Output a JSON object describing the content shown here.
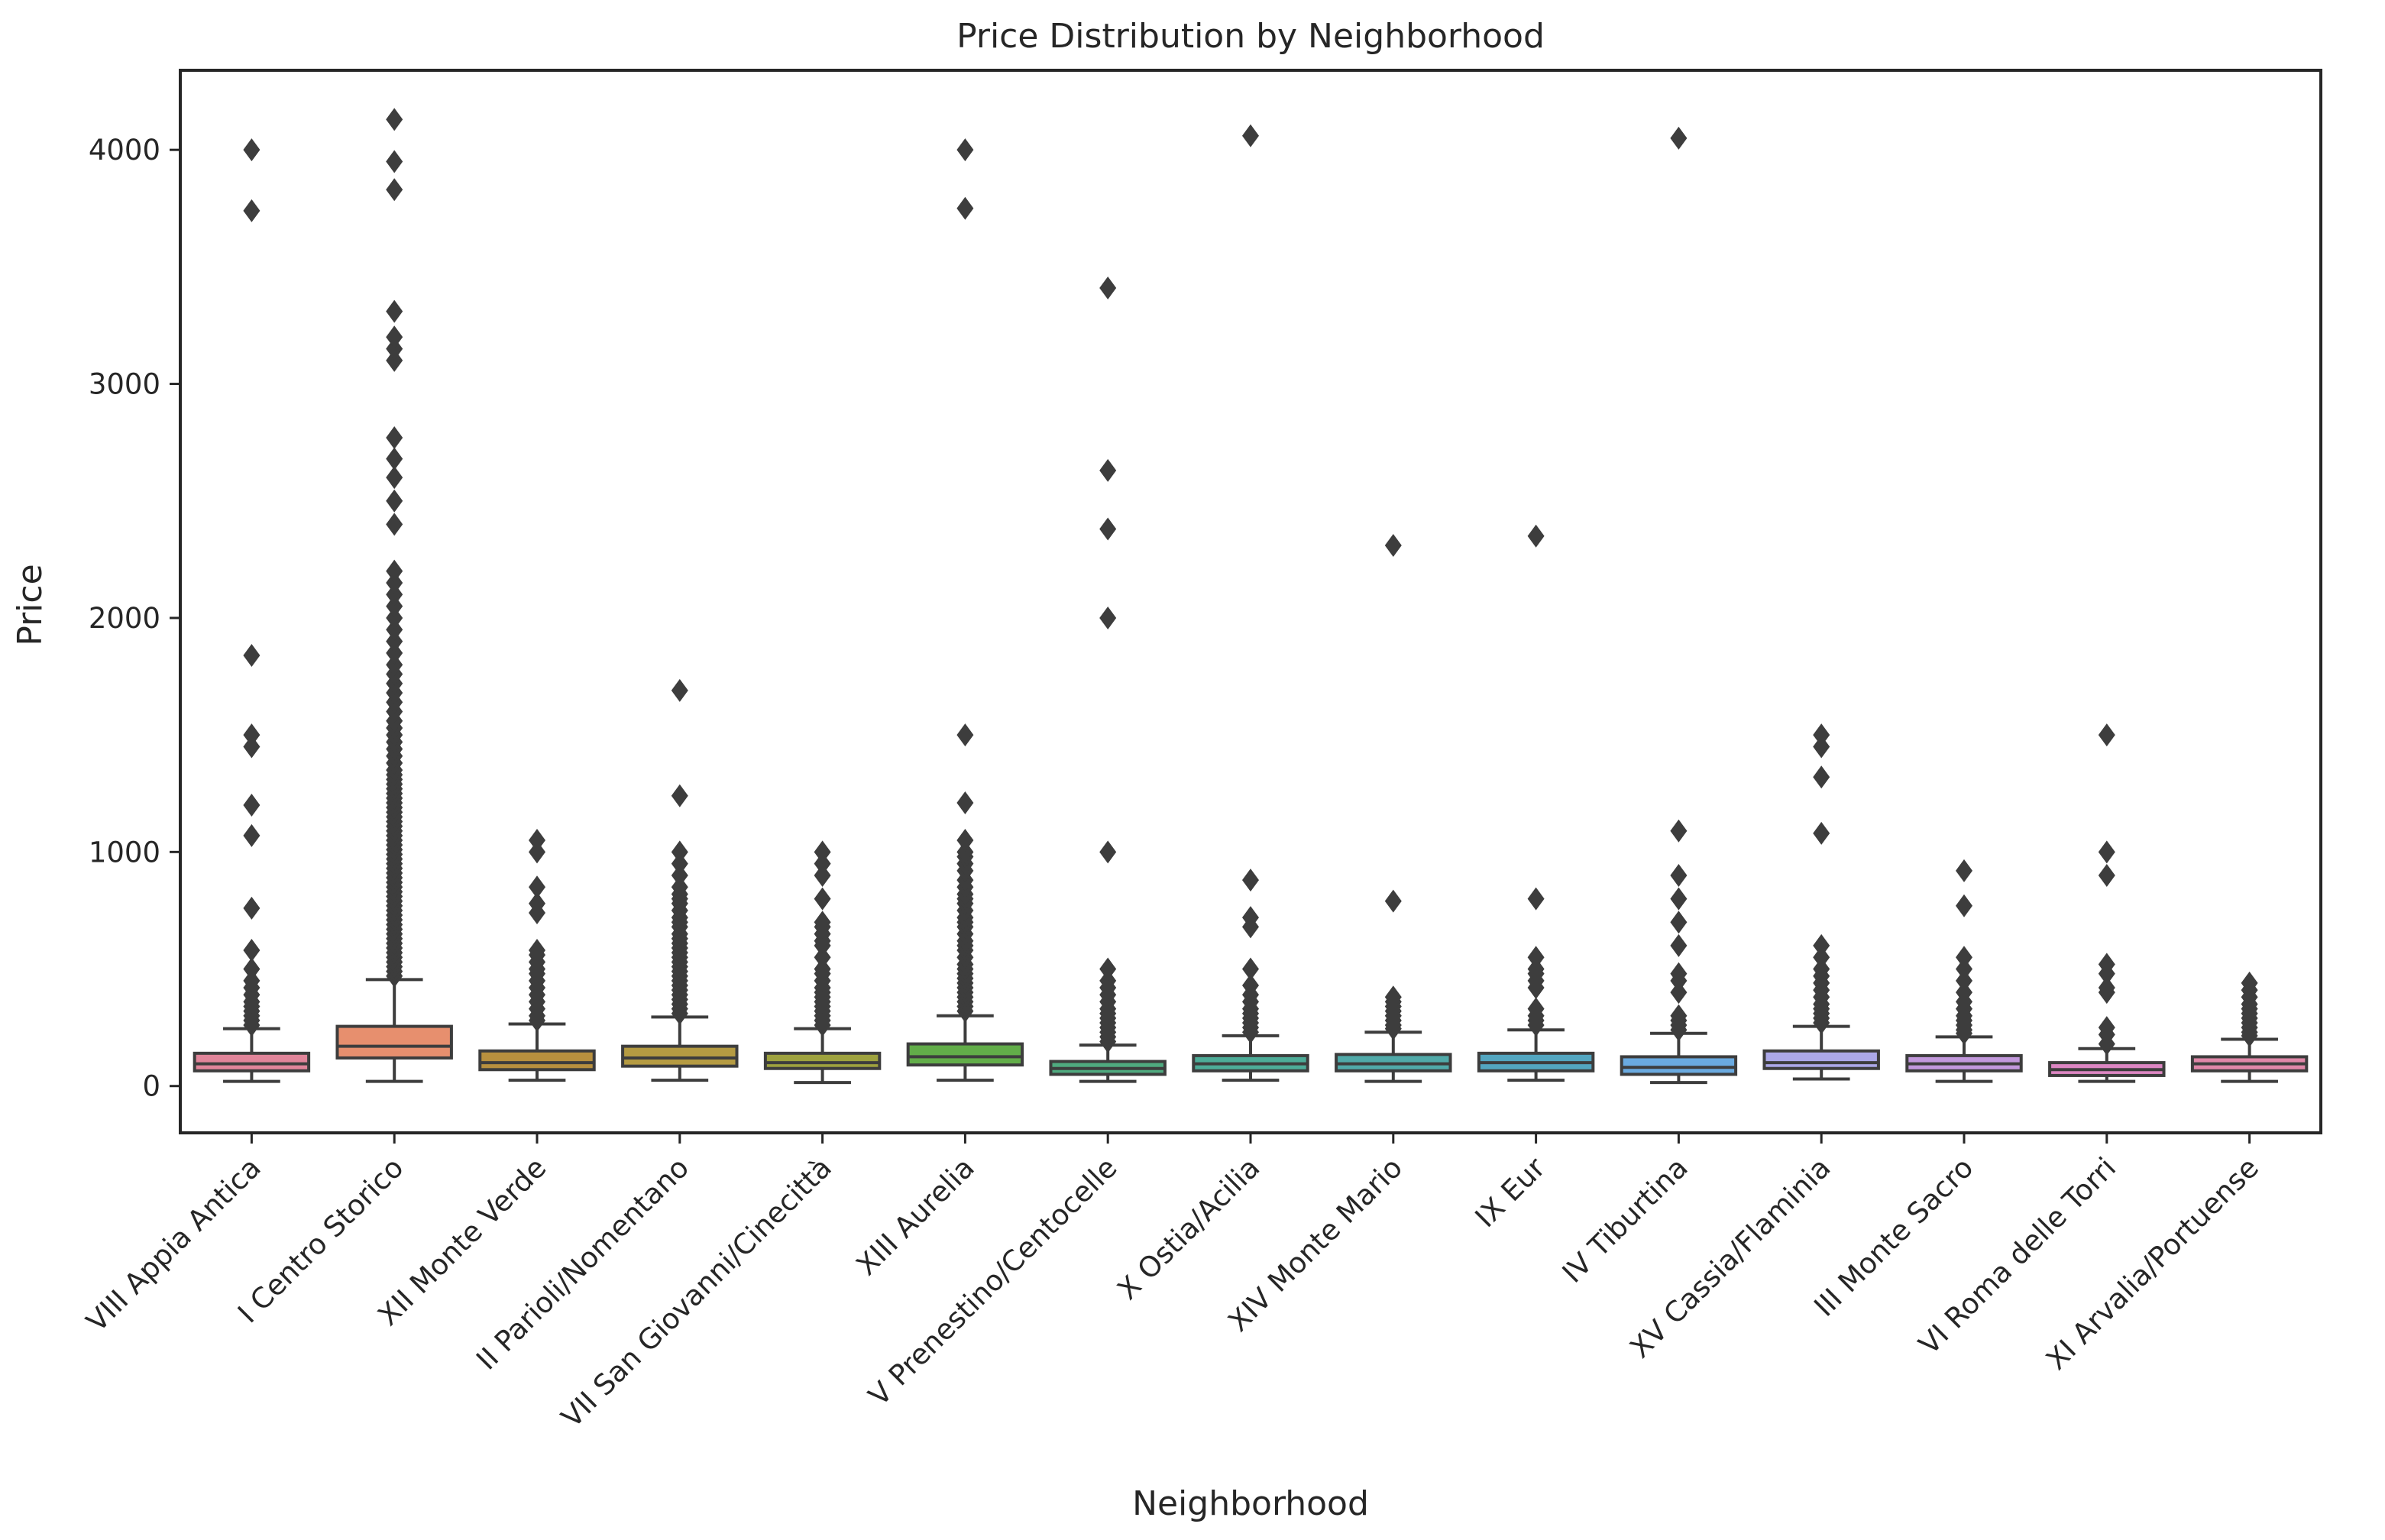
{
  "chart_data": {
    "type": "box",
    "title": "Price Distribution by Neighborhood",
    "xlabel": "Neighborhood",
    "ylabel": "Price",
    "ylim": [
      -200,
      4340
    ],
    "yticks": [
      0,
      1000,
      2000,
      3000,
      4000
    ],
    "grid": false,
    "legend": "none",
    "categories": [
      "VIII Appia Antica",
      "I Centro Storico",
      "XII Monte Verde",
      "II Parioli/Nomentano",
      "VII San Giovanni/Cinecittà",
      "XIII Aurelia",
      "V Prenestino/Centocelle",
      "X Ostia/Acilia",
      "XIV Monte Mario",
      "IX Eur",
      "IV Tiburtina",
      "XV Cassia/Flaminia",
      "III Monte Sacro",
      "VI Roma delle Torri",
      "XI Arvalia/Portuense"
    ],
    "colors": [
      "#e1859a",
      "#e78f6e",
      "#b8903e",
      "#b59b42",
      "#9ea23e",
      "#62ad49",
      "#4faa7f",
      "#4dac98",
      "#50aaa9",
      "#53a6c0",
      "#6aaae0",
      "#aca8e8",
      "#c298dc",
      "#dc86c2",
      "#e087a8"
    ],
    "boxes": [
      {
        "whisker_low": 20,
        "q1": 65,
        "median": 95,
        "q3": 140,
        "whisker_high": 245,
        "outliers": [
          260,
          280,
          300,
          320,
          340,
          360,
          390,
          420,
          450,
          500,
          580,
          760,
          1070,
          1200,
          1450,
          1500,
          1840,
          3740,
          4000
        ]
      },
      {
        "whisker_low": 20,
        "q1": 120,
        "median": 170,
        "q3": 255,
        "whisker_high": 455,
        "outliers": [
          470,
          490,
          510,
          530,
          550,
          570,
          590,
          610,
          630,
          650,
          670,
          690,
          710,
          730,
          750,
          770,
          790,
          810,
          830,
          850,
          870,
          890,
          910,
          930,
          950,
          970,
          990,
          1010,
          1030,
          1050,
          1070,
          1090,
          1110,
          1130,
          1150,
          1170,
          1190,
          1210,
          1230,
          1250,
          1270,
          1290,
          1310,
          1330,
          1350,
          1380,
          1410,
          1440,
          1470,
          1500,
          1530,
          1560,
          1600,
          1640,
          1680,
          1720,
          1760,
          1800,
          1850,
          1900,
          1950,
          2000,
          2050,
          2100,
          2150,
          2200,
          2400,
          2500,
          2600,
          2680,
          2770,
          3100,
          3150,
          3200,
          3310,
          3830,
          3950,
          4130
        ]
      },
      {
        "whisker_low": 25,
        "q1": 70,
        "median": 100,
        "q3": 150,
        "whisker_high": 265,
        "outliers": [
          280,
          300,
          330,
          360,
          390,
          420,
          450,
          480,
          500,
          530,
          560,
          580,
          740,
          780,
          850,
          1000,
          1050
        ]
      },
      {
        "whisker_low": 25,
        "q1": 85,
        "median": 120,
        "q3": 170,
        "whisker_high": 295,
        "outliers": [
          310,
          330,
          350,
          370,
          390,
          410,
          430,
          450,
          470,
          490,
          510,
          530,
          550,
          570,
          590,
          610,
          630,
          650,
          680,
          700,
          720,
          750,
          780,
          800,
          820,
          850,
          900,
          950,
          1000,
          1240,
          1690
        ]
      },
      {
        "whisker_low": 15,
        "q1": 75,
        "median": 100,
        "q3": 140,
        "whisker_high": 245,
        "outliers": [
          260,
          280,
          300,
          320,
          340,
          360,
          380,
          400,
          420,
          450,
          480,
          500,
          550,
          600,
          620,
          650,
          680,
          700,
          800,
          900,
          950,
          1000
        ]
      },
      {
        "whisker_low": 25,
        "q1": 90,
        "median": 125,
        "q3": 180,
        "whisker_high": 300,
        "outliers": [
          320,
          340,
          360,
          380,
          400,
          420,
          440,
          460,
          480,
          500,
          520,
          550,
          580,
          600,
          620,
          650,
          680,
          700,
          720,
          750,
          780,
          800,
          820,
          850,
          880,
          920,
          950,
          980,
          1000,
          1050,
          1210,
          1500,
          3750,
          4000
        ]
      },
      {
        "whisker_low": 20,
        "q1": 50,
        "median": 75,
        "q3": 105,
        "whisker_high": 175,
        "outliers": [
          190,
          210,
          230,
          250,
          270,
          290,
          310,
          330,
          360,
          390,
          420,
          450,
          500,
          1000,
          2000,
          2380,
          2630,
          3410
        ]
      },
      {
        "whisker_low": 25,
        "q1": 65,
        "median": 95,
        "q3": 130,
        "whisker_high": 215,
        "outliers": [
          230,
          250,
          270,
          290,
          310,
          330,
          360,
          390,
          430,
          500,
          680,
          720,
          880,
          4060
        ]
      },
      {
        "whisker_low": 20,
        "q1": 65,
        "median": 95,
        "q3": 135,
        "whisker_high": 230,
        "outliers": [
          245,
          260,
          280,
          300,
          320,
          340,
          360,
          380,
          790,
          2310
        ]
      },
      {
        "whisker_low": 25,
        "q1": 65,
        "median": 100,
        "q3": 140,
        "whisker_high": 240,
        "outliers": [
          260,
          280,
          300,
          330,
          420,
          450,
          480,
          500,
          550,
          800,
          2350
        ]
      },
      {
        "whisker_low": 15,
        "q1": 50,
        "median": 80,
        "q3": 125,
        "whisker_high": 225,
        "outliers": [
          240,
          260,
          280,
          300,
          400,
          450,
          480,
          600,
          700,
          800,
          900,
          1090,
          4050
        ]
      },
      {
        "whisker_low": 30,
        "q1": 75,
        "median": 100,
        "q3": 150,
        "whisker_high": 255,
        "outliers": [
          270,
          290,
          310,
          330,
          350,
          380,
          410,
          440,
          470,
          500,
          550,
          600,
          1080,
          1320,
          1450,
          1500
        ]
      },
      {
        "whisker_low": 20,
        "q1": 65,
        "median": 95,
        "q3": 130,
        "whisker_high": 210,
        "outliers": [
          225,
          240,
          260,
          280,
          300,
          330,
          360,
          400,
          450,
          500,
          550,
          770,
          920
        ]
      },
      {
        "whisker_low": 20,
        "q1": 45,
        "median": 70,
        "q3": 100,
        "whisker_high": 160,
        "outliers": [
          180,
          220,
          250,
          400,
          420,
          480,
          520,
          900,
          1000,
          1500
        ]
      },
      {
        "whisker_low": 20,
        "q1": 65,
        "median": 95,
        "q3": 125,
        "whisker_high": 200,
        "outliers": [
          215,
          230,
          250,
          270,
          290,
          310,
          330,
          350,
          380,
          410,
          440
        ]
      }
    ]
  }
}
